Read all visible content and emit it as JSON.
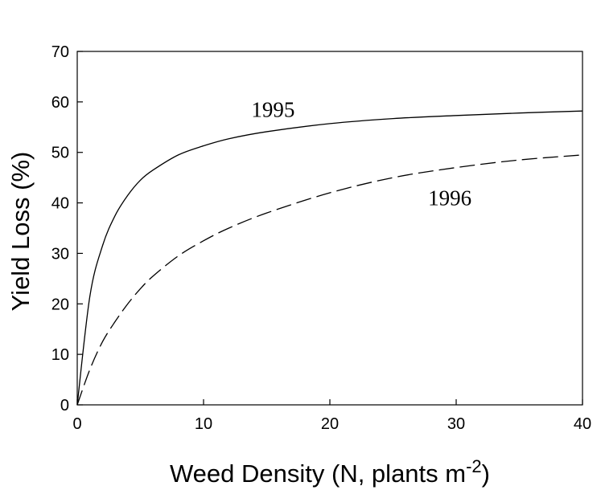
{
  "chart_data": {
    "type": "line",
    "title": "",
    "xlabel": "Weed Density (N, plants m",
    "xlabel_superscript": "-2",
    "xlabel_suffix": ")",
    "ylabel": "Yield Loss (%)",
    "xlim": [
      0,
      40
    ],
    "ylim": [
      0,
      70
    ],
    "xticks": [
      0,
      10,
      20,
      30,
      40
    ],
    "yticks": [
      0,
      10,
      20,
      30,
      40,
      50,
      60,
      70
    ],
    "grid": false,
    "legend": "none",
    "series": [
      {
        "name": "1995",
        "style": "solid",
        "color": "#000000",
        "x": [
          0,
          1,
          2,
          3,
          4,
          5,
          6,
          8,
          10,
          12,
          15,
          20,
          25,
          30,
          35,
          40
        ],
        "y": [
          0,
          21.5,
          31.5,
          37.5,
          41.5,
          44.5,
          46.5,
          49.5,
          51.3,
          52.7,
          54.1,
          55.7,
          56.7,
          57.3,
          57.8,
          58.2
        ]
      },
      {
        "name": "1996",
        "style": "dashed",
        "color": "#000000",
        "x": [
          0,
          1,
          2,
          3,
          4,
          5,
          6,
          8,
          10,
          12,
          15,
          20,
          25,
          30,
          35,
          40
        ],
        "y": [
          0,
          7,
          12.5,
          16.5,
          20,
          23,
          25.5,
          29.5,
          32.5,
          35,
          38,
          42,
          45,
          47,
          48.5,
          49.5
        ]
      }
    ],
    "annotations": [
      {
        "text": "1995",
        "x": 15.5,
        "y": 57
      },
      {
        "text": "1996",
        "x": 29.5,
        "y": 39.5
      }
    ]
  }
}
